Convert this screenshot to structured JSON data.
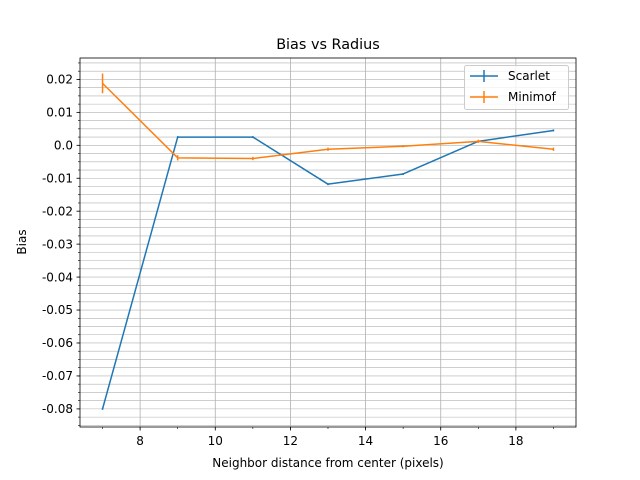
{
  "chart_data": {
    "type": "line",
    "title": "Bias vs Radius",
    "xlabel": "Neighbor distance from center (pixels)",
    "ylabel": "Bias",
    "xlim": [
      6.4,
      19.6
    ],
    "ylim": [
      -0.0855,
      0.0265
    ],
    "x_ticks": [
      8,
      10,
      12,
      14,
      16,
      18
    ],
    "x_tick_labels": [
      "8",
      "10",
      "12",
      "14",
      "16",
      "18"
    ],
    "y_ticks": [
      0.02,
      0.01,
      0.0,
      -0.01,
      -0.02,
      -0.03,
      -0.04,
      -0.05,
      -0.06,
      -0.07,
      -0.08
    ],
    "y_tick_labels": [
      "0.02",
      "0.01",
      "0.0",
      "-0.01",
      "-0.02",
      "-0.03",
      "-0.04",
      "-0.05",
      "-0.06",
      "-0.07",
      "-0.08"
    ],
    "y_minor_step": 0.0025,
    "x_minor_step": 1,
    "grid": true,
    "legend_position": "top-right",
    "series": [
      {
        "name": "Scarlet",
        "color": "#1f77b4",
        "x": [
          7,
          9,
          11,
          13,
          15,
          17,
          19
        ],
        "y": [
          -0.08,
          0.0025,
          0.0025,
          -0.0118,
          -0.0087,
          0.0012,
          0.0045
        ],
        "yerr": [
          0.0003,
          0.0003,
          0.0003,
          0.0003,
          0.0003,
          0.0003,
          0.0003
        ]
      },
      {
        "name": "Minimof",
        "color": "#ff7f0e",
        "x": [
          7,
          9,
          11,
          13,
          15,
          17,
          19
        ],
        "y": [
          0.0188,
          -0.0038,
          -0.004,
          -0.0012,
          -0.0003,
          0.0012,
          -0.0012
        ],
        "yerr": [
          0.003,
          0.0008,
          0.0005,
          0.0005,
          0.0003,
          0.0005,
          0.0005
        ]
      }
    ]
  }
}
